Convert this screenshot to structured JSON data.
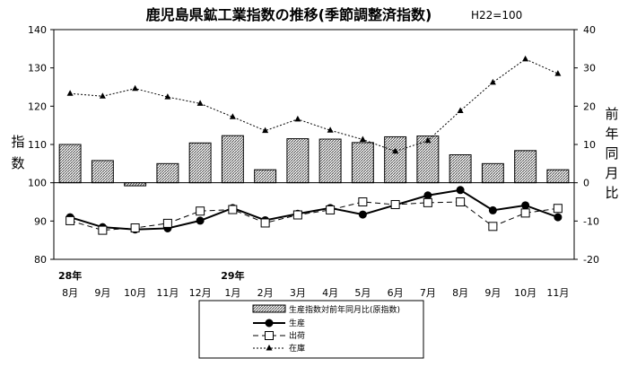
{
  "chart_data": {
    "type": "bar",
    "title": "鹿児島県鉱工業指数の推移(季節調整済指数)",
    "subtitle": "H22=100",
    "ylabel_left": "指数",
    "ylabel_right": "前年同月比",
    "ylim_left": [
      80,
      140
    ],
    "yticks_left": [
      80,
      90,
      100,
      110,
      120,
      130,
      140
    ],
    "ylim_right": [
      -20,
      40
    ],
    "yticks_right": [
      -20,
      -10,
      0,
      10,
      20,
      30,
      40
    ],
    "year_labels": [
      {
        "index": 0,
        "label": "28年"
      },
      {
        "index": 5,
        "label": "29年"
      }
    ],
    "categories": [
      "8月",
      "9月",
      "10月",
      "11月",
      "12月",
      "1月",
      "2月",
      "3月",
      "4月",
      "5月",
      "6月",
      "7月",
      "8月",
      "9月",
      "10月",
      "11月"
    ],
    "grid": false,
    "legend_position": "bottom",
    "series": [
      {
        "name": "生産指数対前年同月比(原指数)",
        "type": "bar",
        "axis": "right",
        "values": [
          10.0,
          5.8,
          -0.8,
          5.0,
          10.4,
          12.3,
          3.4,
          11.5,
          11.4,
          10.5,
          12.0,
          12.2,
          7.3,
          5.0,
          8.4,
          3.4
        ]
      },
      {
        "name": "生産",
        "type": "line",
        "style": "solid",
        "marker": "filled-circle",
        "axis": "left",
        "values": [
          91.0,
          88.4,
          87.8,
          88.1,
          90.1,
          93.4,
          90.2,
          91.9,
          93.4,
          91.7,
          94.2,
          96.7,
          98.1,
          92.8,
          94.1,
          91.0
        ]
      },
      {
        "name": "出荷",
        "type": "line",
        "style": "dashed",
        "marker": "open-square",
        "axis": "left",
        "values": [
          90.1,
          87.6,
          88.2,
          89.4,
          92.6,
          93.0,
          89.5,
          91.6,
          92.9,
          95.0,
          94.3,
          94.8,
          95.0,
          88.6,
          92.1,
          93.3
        ]
      },
      {
        "name": "在庫",
        "type": "line",
        "style": "dotted",
        "marker": "filled-triangle",
        "axis": "right",
        "values": [
          23.3,
          22.6,
          24.6,
          22.4,
          20.7,
          17.2,
          13.6,
          16.6,
          13.7,
          11.3,
          8.2,
          11.0,
          18.8,
          26.2,
          32.3,
          28.5
        ]
      }
    ]
  },
  "colors": {
    "line": "#000000",
    "bar_fill_pattern": "hatched-gray",
    "background": "#ffffff"
  }
}
